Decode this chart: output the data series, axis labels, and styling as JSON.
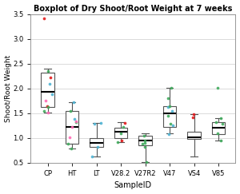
{
  "title": "Boxplot of Dry Shoot/Root Weight at 7 weeks",
  "xlabel": "SampleID",
  "ylabel": "Shoot/Root Weight",
  "categories": [
    "CP",
    "HT",
    "LT",
    "V28.2",
    "V27R2",
    "V47",
    "VS4",
    "V85"
  ],
  "ylim": [
    0.5,
    3.5
  ],
  "yticks": [
    0.5,
    1.0,
    1.5,
    2.0,
    2.5,
    3.0,
    3.5
  ],
  "background_color": "#ffffff",
  "plot_bg_color": "#ffffff",
  "stats": {
    "CP": {
      "med": 1.93,
      "q1": 1.62,
      "q3": 2.32,
      "whislo": 1.52,
      "whishi": 2.4
    },
    "HT": {
      "med": 1.22,
      "q1": 0.88,
      "q3": 1.55,
      "whislo": 0.78,
      "whishi": 1.72
    },
    "LT": {
      "med": 0.9,
      "q1": 0.82,
      "q3": 1.0,
      "whislo": 0.62,
      "whishi": 1.3
    },
    "V28.2": {
      "med": 1.12,
      "q1": 1.0,
      "q3": 1.2,
      "whislo": 0.92,
      "whishi": 1.32
    },
    "V27R2": {
      "med": 0.95,
      "q1": 0.85,
      "q3": 1.05,
      "whislo": 0.52,
      "whishi": 1.1
    },
    "V47": {
      "med": 1.5,
      "q1": 1.22,
      "q3": 1.65,
      "whislo": 1.1,
      "whishi": 2.02
    },
    "VS4": {
      "med": 1.02,
      "q1": 0.98,
      "q3": 1.12,
      "whislo": 0.62,
      "whishi": 1.48
    },
    "V85": {
      "med": 1.2,
      "q1": 1.08,
      "q3": 1.32,
      "whislo": 0.95,
      "whishi": 1.4
    }
  },
  "points": {
    "CP": {
      "red": [
        3.42,
        2.22,
        1.65
      ],
      "blue": [
        2.1,
        1.88
      ],
      "green": [
        2.35,
        1.62,
        1.55
      ],
      "pink": [
        1.75,
        1.52
      ]
    },
    "HT": {
      "red": [],
      "blue": [
        1.72,
        1.38
      ],
      "green": [
        0.78,
        0.88,
        1.55,
        1.32
      ],
      "pink": [
        1.02,
        1.22,
        1.33
      ]
    },
    "LT": {
      "red": [],
      "blue": [
        0.62,
        0.82,
        1.3,
        1.28
      ],
      "green": [],
      "pink": []
    },
    "V28.2": {
      "red": [
        0.95,
        1.3
      ],
      "blue": [],
      "green": [
        0.92,
        1.1,
        1.22
      ],
      "pink": []
    },
    "V27R2": {
      "red": [],
      "blue": [],
      "green": [
        0.52,
        0.82,
        0.88,
        0.95,
        1.05,
        0.9
      ],
      "pink": []
    },
    "V47": {
      "red": [],
      "blue": [
        1.08,
        1.25,
        1.55,
        1.62
      ],
      "green": [
        1.28,
        1.45,
        1.65,
        1.8,
        2.02
      ],
      "pink": []
    },
    "VS4": {
      "red": [
        1.42,
        1.48
      ],
      "blue": [],
      "green": [],
      "pink": []
    },
    "V85": {
      "red": [],
      "blue": [],
      "green": [
        0.95,
        1.1,
        1.28,
        1.32,
        1.4,
        2.01
      ],
      "pink": []
    }
  },
  "color_map": {
    "red": "#e41a1c",
    "blue": "#4eb3d3",
    "green": "#41ab5d",
    "pink": "#ff69b4"
  }
}
